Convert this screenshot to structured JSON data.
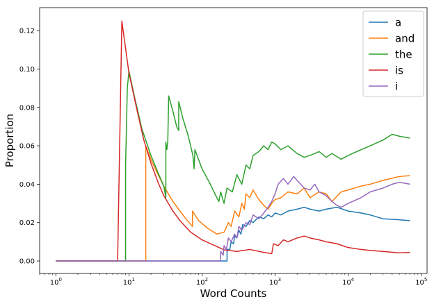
{
  "chart_data": {
    "type": "line",
    "title": "",
    "xlabel": "Word Counts",
    "ylabel": "Proportion",
    "xscale": "log",
    "xlim": [
      0.6,
      120000
    ],
    "ylim": [
      -0.0065,
      0.132
    ],
    "x_ticks": [
      1,
      10,
      100,
      1000,
      10000,
      100000
    ],
    "x_tick_labels": [
      "10^0",
      "10^1",
      "10^2",
      "10^3",
      "10^4",
      "10^5"
    ],
    "y_ticks": [
      0.0,
      0.02,
      0.04,
      0.06,
      0.08,
      0.1,
      0.12
    ],
    "y_tick_labels": [
      "0.00",
      "0.02",
      "0.04",
      "0.06",
      "0.08",
      "0.10",
      "0.12"
    ],
    "grid": false,
    "legend_position": "top-right",
    "series": [
      {
        "name": "a",
        "color": "#1f77b4",
        "points": [
          [
            1,
            0
          ],
          [
            220,
            0
          ],
          [
            220,
            0.006
          ],
          [
            240,
            0.006
          ],
          [
            250,
            0.01
          ],
          [
            270,
            0.009
          ],
          [
            280,
            0.013
          ],
          [
            300,
            0.012
          ],
          [
            320,
            0.016
          ],
          [
            340,
            0.014
          ],
          [
            360,
            0.019
          ],
          [
            400,
            0.018
          ],
          [
            450,
            0.021
          ],
          [
            500,
            0.02
          ],
          [
            600,
            0.023
          ],
          [
            700,
            0.022
          ],
          [
            800,
            0.024
          ],
          [
            900,
            0.023
          ],
          [
            1000,
            0.025
          ],
          [
            1200,
            0.024
          ],
          [
            1500,
            0.026
          ],
          [
            2000,
            0.027
          ],
          [
            2500,
            0.028
          ],
          [
            3000,
            0.027
          ],
          [
            4000,
            0.026
          ],
          [
            5000,
            0.027
          ],
          [
            7000,
            0.028
          ],
          [
            10000,
            0.026
          ],
          [
            15000,
            0.025
          ],
          [
            20000,
            0.024
          ],
          [
            30000,
            0.022
          ],
          [
            50000,
            0.0215
          ],
          [
            70000,
            0.021
          ]
        ]
      },
      {
        "name": "and",
        "color": "#ff7f0e",
        "points": [
          [
            1,
            0
          ],
          [
            17,
            0
          ],
          [
            17,
            0.06
          ],
          [
            20,
            0.053
          ],
          [
            25,
            0.045
          ],
          [
            30,
            0.039
          ],
          [
            40,
            0.031
          ],
          [
            50,
            0.026
          ],
          [
            60,
            0.022
          ],
          [
            74,
            0.018
          ],
          [
            74,
            0.026
          ],
          [
            90,
            0.021
          ],
          [
            120,
            0.017
          ],
          [
            160,
            0.014
          ],
          [
            200,
            0.015
          ],
          [
            230,
            0.02
          ],
          [
            250,
            0.018
          ],
          [
            280,
            0.026
          ],
          [
            320,
            0.023
          ],
          [
            350,
            0.03
          ],
          [
            380,
            0.027
          ],
          [
            400,
            0.035
          ],
          [
            450,
            0.033
          ],
          [
            500,
            0.037
          ],
          [
            600,
            0.032
          ],
          [
            700,
            0.029
          ],
          [
            800,
            0.027
          ],
          [
            900,
            0.03
          ],
          [
            1000,
            0.032
          ],
          [
            1200,
            0.033
          ],
          [
            1500,
            0.036
          ],
          [
            2000,
            0.035
          ],
          [
            2500,
            0.038
          ],
          [
            3000,
            0.033
          ],
          [
            4000,
            0.036
          ],
          [
            5000,
            0.035
          ],
          [
            6000,
            0.031
          ],
          [
            8000,
            0.036
          ],
          [
            10000,
            0.037
          ],
          [
            15000,
            0.039
          ],
          [
            20000,
            0.04
          ],
          [
            30000,
            0.042
          ],
          [
            50000,
            0.044
          ],
          [
            70000,
            0.0445
          ]
        ]
      },
      {
        "name": "the",
        "color": "#2ca02c",
        "points": [
          [
            1,
            0
          ],
          [
            9,
            0
          ],
          [
            9,
            0.05
          ],
          [
            9.5,
            0.09
          ],
          [
            10,
            0.099
          ],
          [
            12,
            0.085
          ],
          [
            15,
            0.069
          ],
          [
            20,
            0.055
          ],
          [
            25,
            0.046
          ],
          [
            30,
            0.039
          ],
          [
            32,
            0.033
          ],
          [
            32,
            0.062
          ],
          [
            33,
            0.058
          ],
          [
            34,
            0.062
          ],
          [
            35,
            0.086
          ],
          [
            40,
            0.078
          ],
          [
            45,
            0.07
          ],
          [
            48,
            0.068
          ],
          [
            48,
            0.083
          ],
          [
            55,
            0.074
          ],
          [
            65,
            0.065
          ],
          [
            75,
            0.055
          ],
          [
            78,
            0.048
          ],
          [
            80,
            0.058
          ],
          [
            100,
            0.048
          ],
          [
            130,
            0.04
          ],
          [
            150,
            0.035
          ],
          [
            170,
            0.031
          ],
          [
            180,
            0.036
          ],
          [
            200,
            0.03
          ],
          [
            220,
            0.038
          ],
          [
            260,
            0.036
          ],
          [
            300,
            0.045
          ],
          [
            350,
            0.04
          ],
          [
            400,
            0.05
          ],
          [
            450,
            0.048
          ],
          [
            500,
            0.055
          ],
          [
            600,
            0.057
          ],
          [
            700,
            0.06
          ],
          [
            800,
            0.058
          ],
          [
            900,
            0.062
          ],
          [
            1000,
            0.061
          ],
          [
            1200,
            0.058
          ],
          [
            1500,
            0.06
          ],
          [
            2000,
            0.056
          ],
          [
            2500,
            0.054
          ],
          [
            3000,
            0.055
          ],
          [
            4000,
            0.057
          ],
          [
            5000,
            0.054
          ],
          [
            6000,
            0.056
          ],
          [
            8000,
            0.053
          ],
          [
            10000,
            0.055
          ],
          [
            15000,
            0.058
          ],
          [
            20000,
            0.06
          ],
          [
            30000,
            0.063
          ],
          [
            40000,
            0.066
          ],
          [
            50000,
            0.065
          ],
          [
            70000,
            0.064
          ]
        ]
      },
      {
        "name": "is",
        "color": "#d62728",
        "points": [
          [
            1,
            0
          ],
          [
            7,
            0
          ],
          [
            8,
            0.125
          ],
          [
            10,
            0.098
          ],
          [
            13,
            0.078
          ],
          [
            16,
            0.063
          ],
          [
            20,
            0.051
          ],
          [
            25,
            0.041
          ],
          [
            30,
            0.034
          ],
          [
            40,
            0.026
          ],
          [
            50,
            0.021
          ],
          [
            70,
            0.015
          ],
          [
            100,
            0.011
          ],
          [
            150,
            0.008
          ],
          [
            200,
            0.0058
          ],
          [
            300,
            0.005
          ],
          [
            450,
            0.006
          ],
          [
            700,
            0.0045
          ],
          [
            900,
            0.0038
          ],
          [
            950,
            0.009
          ],
          [
            1100,
            0.008
          ],
          [
            1300,
            0.011
          ],
          [
            1500,
            0.01
          ],
          [
            2000,
            0.012
          ],
          [
            2500,
            0.013
          ],
          [
            3000,
            0.012
          ],
          [
            4000,
            0.011
          ],
          [
            5000,
            0.01
          ],
          [
            7000,
            0.009
          ],
          [
            10000,
            0.007
          ],
          [
            15000,
            0.006
          ],
          [
            20000,
            0.0055
          ],
          [
            30000,
            0.005
          ],
          [
            50000,
            0.0042
          ],
          [
            70000,
            0.0045
          ]
        ]
      },
      {
        "name": "i",
        "color": "#9467bd",
        "points": [
          [
            1,
            0
          ],
          [
            180,
            0
          ],
          [
            180,
            0.005
          ],
          [
            195,
            0.003
          ],
          [
            200,
            0.008
          ],
          [
            215,
            0.006
          ],
          [
            230,
            0.012
          ],
          [
            250,
            0.01
          ],
          [
            280,
            0.014
          ],
          [
            300,
            0.012
          ],
          [
            320,
            0.018
          ],
          [
            350,
            0.016
          ],
          [
            400,
            0.02
          ],
          [
            450,
            0.019
          ],
          [
            500,
            0.024
          ],
          [
            600,
            0.022
          ],
          [
            700,
            0.025
          ],
          [
            800,
            0.028
          ],
          [
            900,
            0.031
          ],
          [
            1000,
            0.035
          ],
          [
            1100,
            0.04
          ],
          [
            1300,
            0.043
          ],
          [
            1500,
            0.04
          ],
          [
            1800,
            0.044
          ],
          [
            2000,
            0.042
          ],
          [
            2500,
            0.038
          ],
          [
            3000,
            0.037
          ],
          [
            3500,
            0.04
          ],
          [
            4000,
            0.036
          ],
          [
            5000,
            0.034
          ],
          [
            6000,
            0.031
          ],
          [
            7000,
            0.029
          ],
          [
            8000,
            0.028
          ],
          [
            10000,
            0.03
          ],
          [
            15000,
            0.033
          ],
          [
            20000,
            0.036
          ],
          [
            30000,
            0.038
          ],
          [
            40000,
            0.04
          ],
          [
            50000,
            0.041
          ],
          [
            70000,
            0.04
          ]
        ]
      }
    ]
  }
}
